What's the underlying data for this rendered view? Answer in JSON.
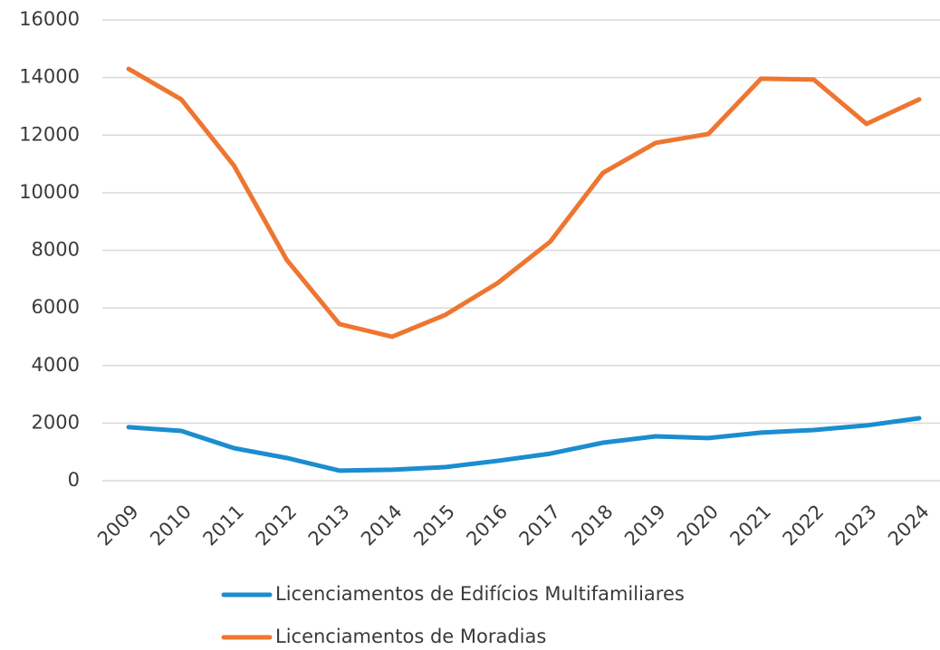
{
  "chart_data": {
    "type": "line",
    "categories": [
      "2009",
      "2010",
      "2011",
      "2012",
      "2013",
      "2014",
      "2015",
      "2016",
      "2017",
      "2018",
      "2019",
      "2020",
      "2021",
      "2022",
      "2023",
      "2024"
    ],
    "series": [
      {
        "name": "Licenciamentos de Edifícios Multifamiliares",
        "color": "#1b8dd0",
        "values": [
          1860,
          1730,
          1130,
          790,
          350,
          380,
          470,
          690,
          940,
          1320,
          1540,
          1480,
          1670,
          1760,
          1920,
          2170
        ]
      },
      {
        "name": "Licenciamentos de Moradias",
        "color": "#ee7631",
        "values": [
          14300,
          13240,
          10940,
          7670,
          5440,
          5000,
          5750,
          6860,
          8300,
          10690,
          11730,
          12040,
          13960,
          13930,
          12390,
          13240
        ]
      }
    ],
    "ylim": [
      0,
      16000
    ],
    "yticks": [
      0,
      2000,
      4000,
      6000,
      8000,
      10000,
      12000,
      14000,
      16000
    ],
    "grid": true,
    "legend": "bottom"
  }
}
